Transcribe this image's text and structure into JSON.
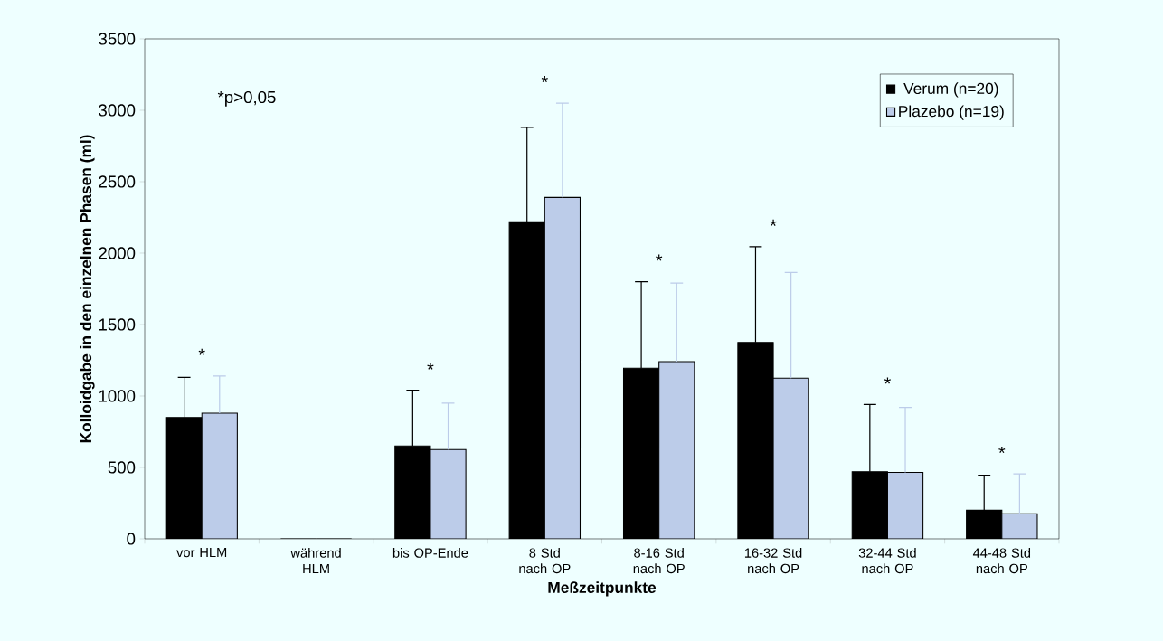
{
  "chart_data": {
    "type": "bar",
    "xlabel": "Meßzeitpunkte",
    "ylabel": "Kolloidgabe in den einzelnen Phasen (ml)",
    "categories": [
      "vor HLM",
      "während HLM",
      "bis OP-Ende",
      "8 Std nach OP",
      "8-16 Std nach OP",
      "16-32 Std nach OP",
      "32-44 Std nach OP",
      "44-48 Std nach OP"
    ],
    "series": [
      {
        "name": "Verum (n=20)",
        "color": "#000000",
        "values": [
          850,
          0,
          650,
          2220,
          1195,
          1375,
          470,
          200
        ],
        "errors": [
          [
            850,
            1130
          ],
          null,
          [
            650,
            1040
          ],
          [
            2220,
            2880
          ],
          [
            1195,
            1800
          ],
          [
            1375,
            2045
          ],
          [
            470,
            940
          ],
          [
            200,
            445
          ]
        ]
      },
      {
        "name": "Plazebo (n=19)",
        "color": "#bccce9",
        "values": [
          880,
          0,
          625,
          2390,
          1240,
          1125,
          465,
          175
        ],
        "errors": [
          [
            880,
            1140
          ],
          null,
          [
            625,
            950
          ],
          [
            2390,
            3050
          ],
          [
            1240,
            1790
          ],
          [
            1125,
            1865
          ],
          [
            465,
            920
          ],
          [
            175,
            455
          ]
        ]
      }
    ],
    "ylim": [
      0,
      3500
    ],
    "yticks": [
      0,
      500,
      1000,
      1500,
      2000,
      2500,
      3000,
      3500
    ],
    "grid": false,
    "legend": "top right",
    "annotations": [
      "*p>0,05",
      "*",
      "*",
      "*",
      "*",
      "*",
      "*",
      "*"
    ]
  }
}
